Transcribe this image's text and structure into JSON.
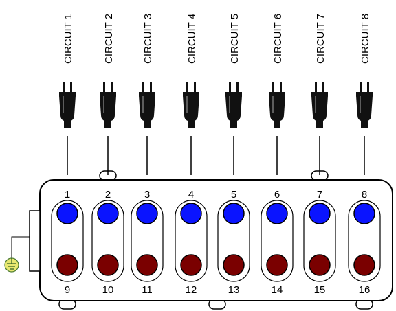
{
  "circuits": [
    {
      "label": "CIRCUIT 1",
      "top": 1,
      "bottom": 9
    },
    {
      "label": "CIRCUIT 2",
      "top": 2,
      "bottom": 10
    },
    {
      "label": "CIRCUIT 3",
      "top": 3,
      "bottom": 11
    },
    {
      "label": "CIRCUIT 4",
      "top": 4,
      "bottom": 12
    },
    {
      "label": "CIRCUIT 5",
      "top": 5,
      "bottom": 13
    },
    {
      "label": "CIRCUIT 6",
      "top": 6,
      "bottom": 14
    },
    {
      "label": "CIRCUIT 7",
      "top": 7,
      "bottom": 15
    },
    {
      "label": "CIRCUIT 8",
      "top": 8,
      "bottom": 16
    }
  ]
}
